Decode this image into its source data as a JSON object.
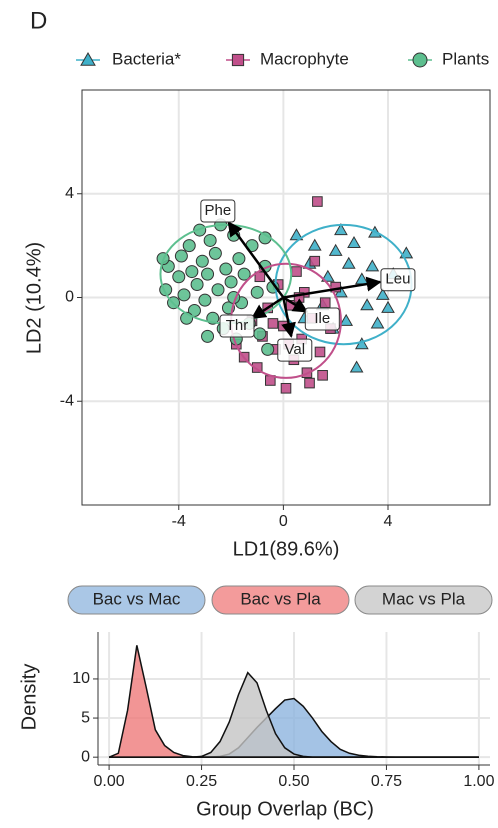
{
  "chart_data": [
    {
      "type": "scatter",
      "panel_label": "D",
      "x_label": "LD1(89.6%)",
      "y_label": "LD2 (10.4%)",
      "xlim": [
        -7.7,
        7.9
      ],
      "ylim": [
        -8,
        8
      ],
      "xticks": [
        -4,
        0,
        4
      ],
      "yticks": [
        -4,
        0,
        4
      ],
      "grid": true,
      "legend": "top",
      "series": [
        {
          "name": "Bacteria*",
          "color": "#3fb0c9",
          "shape": "triangle",
          "x": [
            0.8,
            1.0,
            1.2,
            1.5,
            1.7,
            1.9,
            2.0,
            2.2,
            2.4,
            2.5,
            2.7,
            2.8,
            3.0,
            3.2,
            3.4,
            3.6,
            3.8,
            4.2,
            4.7,
            3.0,
            2.2,
            3.5,
            4.0,
            0.5
          ],
          "values": [
            -0.8,
            1.3,
            2.0,
            -0.3,
            0.8,
            -1.2,
            1.8,
            0.2,
            -0.9,
            1.3,
            2.1,
            -2.7,
            0.7,
            -0.3,
            1.2,
            -1.0,
            0.1,
            0.9,
            1.7,
            -1.8,
            2.6,
            2.5,
            -0.4,
            2.4
          ],
          "ellipse": {
            "cx": 2.3,
            "cy": 0.5,
            "rx": 2.6,
            "ry": 2.3
          }
        },
        {
          "name": "Macrophyte",
          "color": "#c04f8a",
          "shape": "square",
          "x": [
            -1.8,
            -1.5,
            -1.2,
            -1.0,
            -0.8,
            -0.6,
            -0.5,
            -0.3,
            -0.2,
            0.0,
            0.1,
            0.3,
            0.4,
            0.5,
            0.7,
            0.8,
            0.9,
            1.1,
            1.2,
            1.3,
            1.4,
            1.6,
            1.8,
            2.0,
            -0.9,
            0.2,
            1.0,
            -0.4,
            0.6,
            1.5
          ],
          "values": [
            -1.8,
            -2.3,
            -0.9,
            -2.7,
            -1.5,
            -0.4,
            -3.2,
            -2.0,
            0.5,
            -1.1,
            -3.5,
            -0.3,
            -2.4,
            1.0,
            -1.6,
            0.2,
            -2.9,
            -0.8,
            1.4,
            3.7,
            -2.1,
            -0.2,
            -1.2,
            0.4,
            0.8,
            -1.8,
            -3.3,
            -1.0,
            0.0,
            -3.0
          ],
          "ellipse": {
            "cx": 0.1,
            "cy": -0.9,
            "rx": 2.1,
            "ry": 2.2
          }
        },
        {
          "name": "Plants",
          "color": "#5dbf8f",
          "shape": "circle",
          "x": [
            -4.5,
            -4.4,
            -4.2,
            -4.0,
            -3.9,
            -3.8,
            -3.6,
            -3.5,
            -3.4,
            -3.3,
            -3.2,
            -3.1,
            -3.0,
            -2.9,
            -2.8,
            -2.7,
            -2.6,
            -2.5,
            -2.4,
            -2.3,
            -2.2,
            -2.1,
            -2.0,
            -1.9,
            -1.8,
            -1.7,
            -1.6,
            -1.5,
            -1.3,
            -1.2,
            -1.0,
            -0.9,
            -0.7,
            -0.6,
            -0.4,
            -4.6,
            -3.7,
            -2.9,
            -1.9,
            -0.7
          ],
          "values": [
            0.3,
            1.2,
            -0.2,
            0.8,
            1.6,
            0.1,
            2.0,
            1.0,
            -0.5,
            0.5,
            2.6,
            1.4,
            -0.1,
            0.9,
            2.2,
            -0.8,
            1.7,
            0.3,
            2.8,
            -1.2,
            1.1,
            -0.4,
            0.6,
            2.4,
            -1.6,
            1.5,
            -0.2,
            0.9,
            -1.0,
            2.0,
            0.2,
            -1.4,
            1.2,
            -2.0,
            0.4,
            1.5,
            -0.8,
            -1.5,
            0.0,
            2.3
          ],
          "ellipse": {
            "cx": -2.2,
            "cy": 0.9,
            "rx": 2.5,
            "ry": 1.9
          }
        }
      ],
      "arrows": [
        {
          "label": "Phe",
          "x": -2.1,
          "y": 2.9
        },
        {
          "label": "Leu",
          "x": 3.7,
          "y": 0.6
        },
        {
          "label": "Ile",
          "x": 0.9,
          "y": -0.55
        },
        {
          "label": "Thr",
          "x": -1.2,
          "y": -0.8
        },
        {
          "label": "Val",
          "x": 0.3,
          "y": -1.5
        }
      ]
    },
    {
      "type": "area",
      "x_label": "Group Overlap (BC)",
      "y_label": "Density",
      "xlim": [
        -0.03,
        1.03
      ],
      "ylim": [
        -1,
        16
      ],
      "grid": true,
      "xticks": [
        {
          "value": 0,
          "label": "0.00"
        },
        {
          "value": 0.25,
          "label": "0.25"
        },
        {
          "value": 0.5,
          "label": "0.50"
        },
        {
          "value": 0.75,
          "label": "0.75"
        },
        {
          "value": 1,
          "label": "1.00"
        }
      ],
      "yticks": [
        0,
        5,
        10
      ],
      "x": [
        0,
        0.025,
        0.05,
        0.075,
        0.1,
        0.125,
        0.15,
        0.175,
        0.2,
        0.225,
        0.25,
        0.275,
        0.3,
        0.325,
        0.35,
        0.375,
        0.4,
        0.425,
        0.45,
        0.475,
        0.5,
        0.525,
        0.55,
        0.575,
        0.6,
        0.625,
        0.65,
        0.675,
        0.7,
        0.725,
        0.75,
        0.775,
        0.8,
        0.825,
        0.85,
        0.875,
        0.9,
        0.925,
        0.95,
        0.975,
        1
      ],
      "series": [
        {
          "name": "Bac vs Mac",
          "color": "#8db4de",
          "values": [
            0,
            0,
            0,
            0,
            0,
            0,
            0,
            0,
            0,
            0,
            0,
            0,
            0.1,
            0.4,
            1.2,
            2.5,
            3.8,
            5,
            6.2,
            7.3,
            7.5,
            6.5,
            5,
            3.3,
            2,
            1,
            0.5,
            0.25,
            0.12,
            0.06,
            0.03,
            0,
            0,
            0,
            0,
            0,
            0,
            0,
            0,
            0,
            0
          ]
        },
        {
          "name": "Bac vs Pla",
          "color": "#ef7a7a",
          "values": [
            0,
            0.5,
            6,
            14.3,
            9,
            3.5,
            1.5,
            0.6,
            0.2,
            0.05,
            0,
            0,
            0,
            0,
            0,
            0,
            0,
            0,
            0,
            0,
            0,
            0,
            0,
            0,
            0,
            0,
            0,
            0,
            0,
            0,
            0,
            0,
            0,
            0,
            0,
            0,
            0,
            0,
            0,
            0,
            0
          ]
        },
        {
          "name": "Mac vs Pla",
          "color": "#c4c4c4",
          "values": [
            0,
            0,
            0,
            0,
            0,
            0,
            0,
            0,
            0,
            0,
            0.1,
            0.6,
            2,
            4.5,
            8,
            10.8,
            9.5,
            6,
            3,
            1.2,
            0.4,
            0.1,
            0,
            0,
            0,
            0,
            0,
            0,
            0,
            0,
            0,
            0,
            0,
            0,
            0,
            0,
            0,
            0,
            0,
            0,
            0
          ]
        }
      ]
    }
  ]
}
